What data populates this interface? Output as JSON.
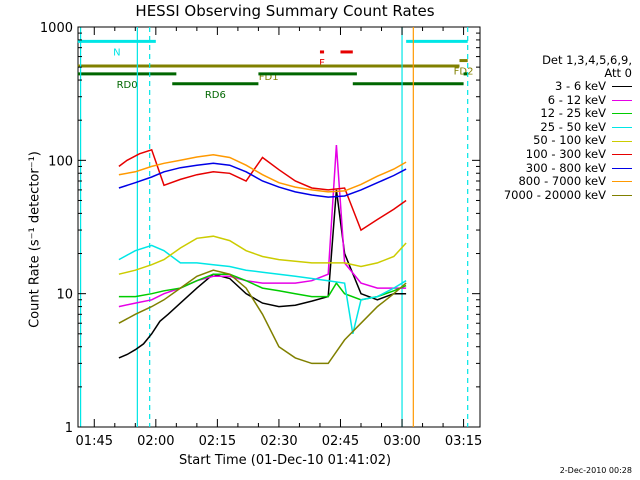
{
  "chart_data": {
    "type": "line",
    "title": "HESSI Observing Summary Count Rates",
    "xlabel": "Start Time (01-Dec-10 01:41:02)",
    "ylabel": "Count Rate (s⁻¹ detector⁻¹)",
    "y_scale": "log",
    "ylim": [
      1,
      1000
    ],
    "xlim": [
      "01:41:02",
      "03:19:00"
    ],
    "x_ticks": [
      "01:45",
      "02:00",
      "02:15",
      "02:30",
      "02:45",
      "03:00",
      "03:15"
    ],
    "y_ticks": [
      "1",
      "10",
      "100",
      "1000"
    ],
    "legend_title": [
      "Det 1,3,4,5,6,9,",
      "Att 0"
    ],
    "legend_position": "right",
    "grid": false,
    "series": [
      {
        "name": "3 - 6 keV",
        "color": "#000000",
        "x": [
          "01:51",
          "01:53",
          "01:55",
          "01:57",
          "01:59",
          "02:01",
          "02:03",
          "02:06",
          "02:10",
          "02:14",
          "02:18",
          "02:22",
          "02:26",
          "02:30",
          "02:34",
          "02:38",
          "02:42",
          "02:44",
          "02:46",
          "02:50",
          "02:54",
          "02:58",
          "03:01"
        ],
        "y": [
          3.3,
          3.5,
          3.8,
          4.2,
          5,
          6.2,
          7,
          8.5,
          11,
          14,
          13,
          10,
          8.5,
          8,
          8.2,
          8.8,
          9.5,
          60,
          20,
          10,
          9,
          10,
          10
        ]
      },
      {
        "name": "6 - 12 keV",
        "color": "#e600e6",
        "x": [
          "01:51",
          "01:55",
          "01:59",
          "02:02",
          "02:06",
          "02:10",
          "02:14",
          "02:18",
          "02:22",
          "02:26",
          "02:30",
          "02:34",
          "02:38",
          "02:42",
          "02:44",
          "02:46",
          "02:50",
          "02:54",
          "02:58",
          "03:01"
        ],
        "y": [
          8,
          8.5,
          9,
          10,
          11,
          12.5,
          13.5,
          13.5,
          12.5,
          12,
          12,
          12,
          12.5,
          14,
          130,
          17,
          12,
          11,
          11,
          11
        ]
      },
      {
        "name": "12 - 25 keV",
        "color": "#00cc00",
        "x": [
          "01:51",
          "01:55",
          "01:59",
          "02:02",
          "02:06",
          "02:10",
          "02:14",
          "02:18",
          "02:22",
          "02:26",
          "02:30",
          "02:34",
          "02:38",
          "02:42",
          "02:44",
          "02:46",
          "02:50",
          "02:54",
          "02:58",
          "03:01"
        ],
        "y": [
          9.5,
          9.5,
          10,
          10.5,
          11,
          12.5,
          14,
          14,
          12.5,
          11,
          10.5,
          10,
          9.5,
          9.5,
          12,
          10,
          9,
          9.5,
          10.5,
          11.5
        ]
      },
      {
        "name": "25 - 50 keV",
        "color": "#00e6e6",
        "x": [
          "01:51",
          "01:55",
          "01:59",
          "02:02",
          "02:06",
          "02:10",
          "02:14",
          "02:18",
          "02:22",
          "02:26",
          "02:30",
          "02:34",
          "02:38",
          "02:42",
          "02:46",
          "02:48",
          "02:50",
          "02:54",
          "02:58",
          "03:01"
        ],
        "y": [
          18,
          21,
          23,
          21,
          17,
          17,
          16.5,
          16,
          15,
          14.5,
          14,
          13.5,
          13,
          12.5,
          12,
          5,
          9,
          9.5,
          11,
          12.5
        ]
      },
      {
        "name": "50 - 100 keV",
        "color": "#cccc00",
        "x": [
          "01:51",
          "01:55",
          "01:59",
          "02:02",
          "02:06",
          "02:10",
          "02:14",
          "02:18",
          "02:22",
          "02:26",
          "02:30",
          "02:34",
          "02:38",
          "02:42",
          "02:46",
          "02:50",
          "02:54",
          "02:58",
          "03:01"
        ],
        "y": [
          14,
          15,
          16.5,
          18,
          22,
          26,
          27,
          25,
          21,
          19,
          18,
          17.5,
          17,
          17,
          17,
          16,
          17,
          19,
          24
        ]
      },
      {
        "name": "100 - 300 keV",
        "color": "#e60000",
        "x": [
          "01:51",
          "01:53",
          "01:56",
          "01:59",
          "02:02",
          "02:06",
          "02:10",
          "02:14",
          "02:18",
          "02:22",
          "02:26",
          "02:30",
          "02:34",
          "02:38",
          "02:42",
          "02:46",
          "02:50",
          "02:54",
          "02:58",
          "03:01"
        ],
        "y": [
          90,
          100,
          112,
          120,
          65,
          72,
          78,
          82,
          80,
          70,
          105,
          85,
          70,
          62,
          60,
          62,
          30,
          36,
          43,
          50
        ]
      },
      {
        "name": "300 - 800 keV",
        "color": "#0000e6",
        "x": [
          "01:51",
          "01:55",
          "01:59",
          "02:02",
          "02:06",
          "02:10",
          "02:14",
          "02:18",
          "02:22",
          "02:26",
          "02:30",
          "02:34",
          "02:38",
          "02:42",
          "02:46",
          "02:50",
          "02:54",
          "02:58",
          "03:01"
        ],
        "y": [
          62,
          68,
          75,
          82,
          88,
          92,
          95,
          92,
          82,
          70,
          63,
          58,
          55,
          53,
          54,
          60,
          68,
          77,
          86
        ]
      },
      {
        "name": "800 - 7000 keV",
        "color": "#ff9900",
        "x": [
          "01:51",
          "01:55",
          "01:59",
          "02:02",
          "02:06",
          "02:10",
          "02:14",
          "02:18",
          "02:22",
          "02:26",
          "02:30",
          "02:34",
          "02:38",
          "02:42",
          "02:46",
          "02:50",
          "02:54",
          "02:58",
          "03:01"
        ],
        "y": [
          78,
          82,
          90,
          95,
          100,
          106,
          110,
          105,
          92,
          78,
          68,
          63,
          60,
          58,
          59,
          66,
          76,
          86,
          97
        ]
      },
      {
        "name": "7000 - 20000 keV",
        "color": "#808000",
        "x": [
          "01:51",
          "01:55",
          "01:59",
          "02:02",
          "02:06",
          "02:10",
          "02:14",
          "02:18",
          "02:22",
          "02:26",
          "02:30",
          "02:34",
          "02:38",
          "02:42",
          "02:46",
          "02:50",
          "02:54",
          "02:58",
          "03:01"
        ],
        "y": [
          6,
          7,
          8,
          9,
          11,
          13.5,
          15,
          14,
          11,
          7,
          4,
          3.3,
          3,
          3,
          4.5,
          6,
          8,
          10,
          12
        ]
      }
    ],
    "annotations": [
      {
        "text": "N",
        "color": "#00e6e6",
        "from": "01:41",
        "to": "02:00",
        "level": 780
      },
      {
        "text": "",
        "color": "#00e6e6",
        "from": "03:01",
        "to": "03:16",
        "level": 780
      },
      {
        "text": "F",
        "color": "#e60000",
        "from": "02:40",
        "to": "02:41",
        "level": 650
      },
      {
        "text": "",
        "color": "#e60000",
        "from": "02:45",
        "to": "02:48",
        "level": 650
      },
      {
        "text": "FD1",
        "color": "#808000",
        "from": "01:41",
        "to": "03:14",
        "level": 510
      },
      {
        "text": "FD2",
        "color": "#808000",
        "from": "03:14",
        "to": "03:16",
        "level": 560
      },
      {
        "text": "RD0",
        "color": "#006600",
        "from": "01:41",
        "to": "02:05",
        "level": 445
      },
      {
        "text": "",
        "color": "#006600",
        "from": "02:25",
        "to": "02:49",
        "level": 445
      },
      {
        "text": "",
        "color": "#006600",
        "from": "03:15",
        "to": "03:16",
        "level": 445
      },
      {
        "text": "RD6",
        "color": "#006600",
        "from": "02:04",
        "to": "02:25",
        "level": 375
      },
      {
        "text": "",
        "color": "#006600",
        "from": "02:48",
        "to": "03:15",
        "level": 375
      }
    ],
    "vertical_lines": [
      {
        "time": "01:41:40",
        "color": "#00e6e6",
        "style": "solid"
      },
      {
        "time": "01:55:30",
        "color": "#00e6e6",
        "style": "solid"
      },
      {
        "time": "01:58:30",
        "color": "#00e6e6",
        "style": "dashed"
      },
      {
        "time": "03:00:00",
        "color": "#00e6e6",
        "style": "solid"
      },
      {
        "time": "03:16:00",
        "color": "#00e6e6",
        "style": "dashed"
      },
      {
        "time": "03:02:45",
        "color": "#ff9900",
        "style": "solid"
      }
    ]
  },
  "footer": {
    "timestamp": "2-Dec-2010 00:28"
  }
}
